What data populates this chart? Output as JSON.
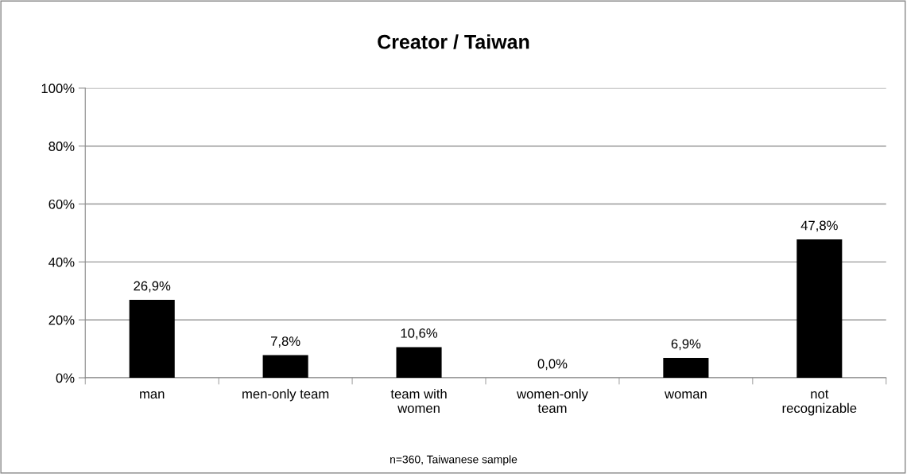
{
  "chart_data": {
    "type": "bar",
    "title": "Creator / Taiwan",
    "categories": [
      "man",
      "men-only team",
      "team with\nwomen",
      "women-only\nteam",
      "woman",
      "not\nrecognizable"
    ],
    "values": [
      26.9,
      7.8,
      10.6,
      0.0,
      6.9,
      47.8
    ],
    "value_labels": [
      "26,9%",
      "7,8%",
      "10,6%",
      "0,0%",
      "6,9%",
      "47,8%"
    ],
    "color": "#000000",
    "ylim": [
      0,
      100
    ],
    "yticks": [
      {
        "value": 0,
        "label": "0%"
      },
      {
        "value": 20,
        "label": "20%"
      },
      {
        "value": 40,
        "label": "40%"
      },
      {
        "value": 60,
        "label": "60%"
      },
      {
        "value": 80,
        "label": "80%"
      },
      {
        "value": 100,
        "label": "100%"
      }
    ],
    "grid": "y",
    "legend": false,
    "annotations": [
      "n=360, Taiwanese sample"
    ]
  }
}
